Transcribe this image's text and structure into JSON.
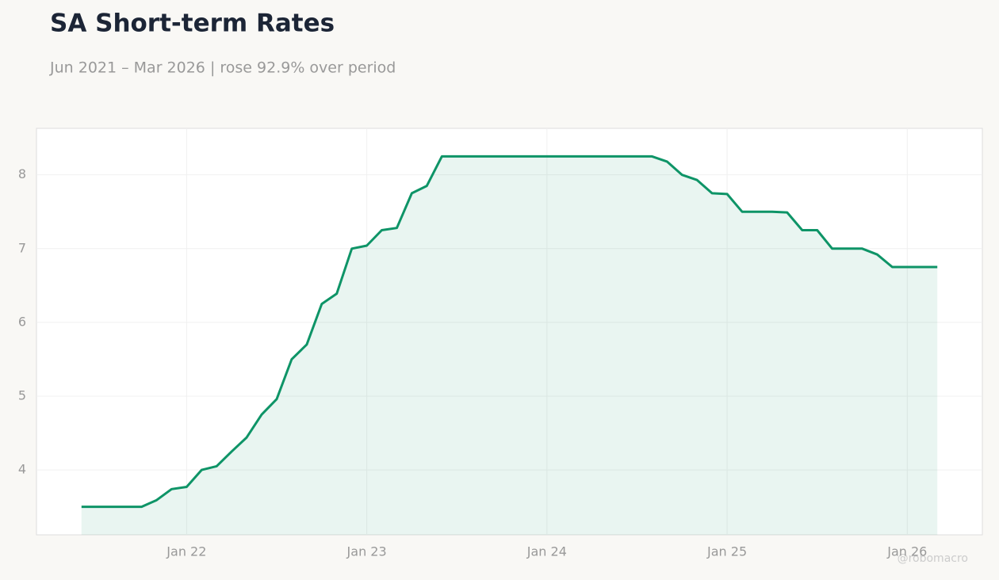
{
  "chart_data": {
    "type": "line",
    "title": "SA Short-term Rates",
    "subtitle": "Jun 2021 – Mar 2026 | rose 92.9% over period",
    "watermark": "@robomacro",
    "x": [
      "2021-06",
      "2021-07",
      "2021-08",
      "2021-09",
      "2021-10",
      "2021-11",
      "2021-12",
      "2022-01",
      "2022-02",
      "2022-03",
      "2022-04",
      "2022-05",
      "2022-06",
      "2022-07",
      "2022-08",
      "2022-09",
      "2022-10",
      "2022-11",
      "2022-12",
      "2023-01",
      "2023-02",
      "2023-03",
      "2023-04",
      "2023-05",
      "2023-06",
      "2023-07",
      "2023-08",
      "2023-09",
      "2023-10",
      "2023-11",
      "2023-12",
      "2024-01",
      "2024-02",
      "2024-03",
      "2024-04",
      "2024-05",
      "2024-06",
      "2024-07",
      "2024-08",
      "2024-09",
      "2024-10",
      "2024-11",
      "2024-12",
      "2025-01",
      "2025-02",
      "2025-03",
      "2025-04",
      "2025-05",
      "2025-06",
      "2025-07",
      "2025-08",
      "2025-09",
      "2025-10",
      "2025-11",
      "2025-12",
      "2026-01",
      "2026-02",
      "2026-03"
    ],
    "series": [
      {
        "color": "#0e9467",
        "values": [
          3.5,
          3.5,
          3.5,
          3.5,
          3.5,
          3.59,
          3.74,
          3.77,
          4.0,
          4.05,
          4.25,
          4.44,
          4.75,
          4.96,
          5.5,
          5.7,
          6.25,
          6.39,
          7.0,
          7.04,
          7.25,
          7.28,
          7.75,
          7.85,
          8.25,
          8.25,
          8.25,
          8.25,
          8.25,
          8.25,
          8.25,
          8.25,
          8.25,
          8.25,
          8.25,
          8.25,
          8.25,
          8.25,
          8.25,
          8.18,
          8.0,
          7.93,
          7.75,
          7.74,
          7.5,
          7.5,
          7.5,
          7.49,
          7.25,
          7.25,
          7.0,
          7.0,
          7.0,
          6.92,
          6.75,
          6.75,
          6.75,
          6.75
        ]
      }
    ],
    "xlim": [
      "2021-03",
      "2026-06"
    ],
    "xticks": [
      {
        "value": "2022-01",
        "label": "Jan 22"
      },
      {
        "value": "2023-01",
        "label": "Jan 23"
      },
      {
        "value": "2024-01",
        "label": "Jan 24"
      },
      {
        "value": "2025-01",
        "label": "Jan 25"
      },
      {
        "value": "2026-01",
        "label": "Jan 26"
      }
    ],
    "ylim": [
      3.12,
      8.63
    ],
    "yticks": [
      4,
      5,
      6,
      7,
      8
    ],
    "grid": true,
    "area_fill": true
  }
}
